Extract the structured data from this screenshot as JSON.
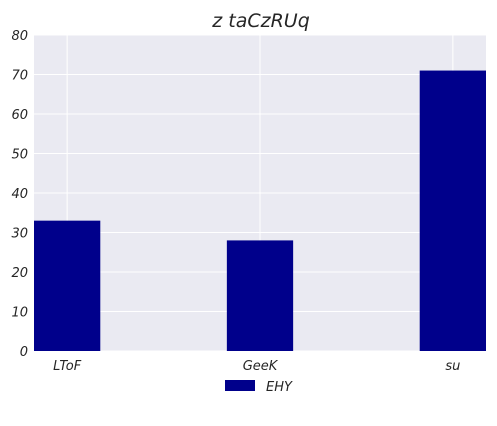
{
  "chart_data": {
    "type": "bar",
    "title": "z  taCzRUq",
    "categories": [
      "LToF",
      "GeeK",
      "su"
    ],
    "series": [
      {
        "name": "EHY",
        "values": [
          33,
          28,
          71
        ],
        "color": "#00008b"
      }
    ],
    "xlabel": "",
    "ylabel": "",
    "ylim": [
      0,
      80
    ],
    "yticks": [
      0,
      10,
      20,
      30,
      40,
      50,
      60,
      70,
      80
    ],
    "grid": true,
    "background_color": "#eaeaf2",
    "grid_color": "#ffffff",
    "legend_position": "bottom-center"
  }
}
